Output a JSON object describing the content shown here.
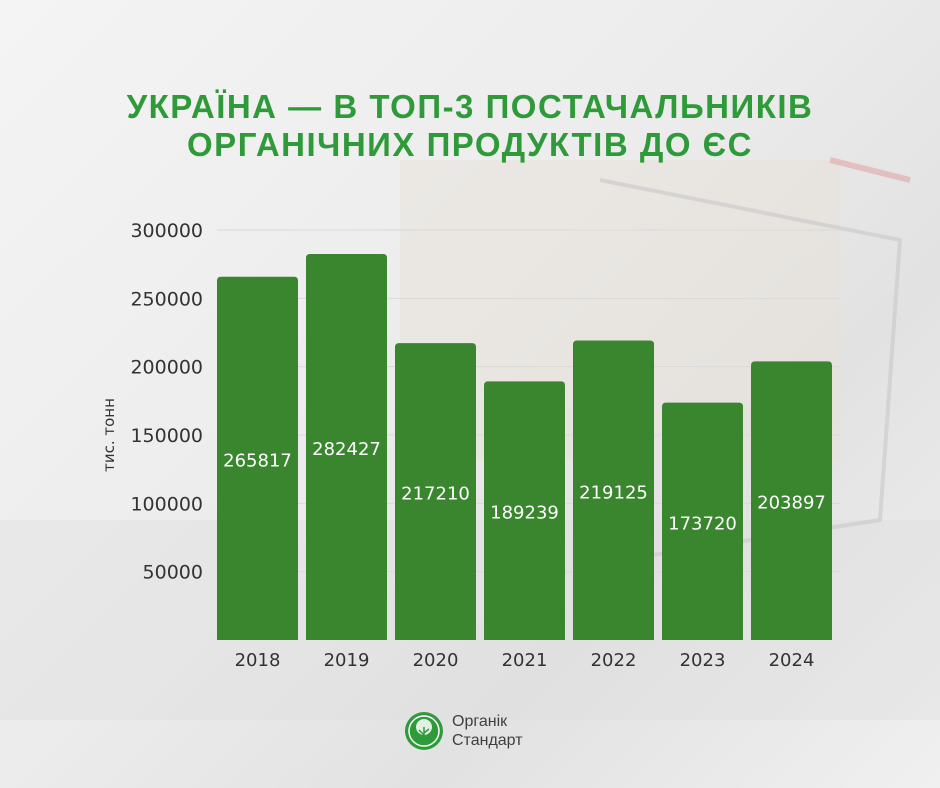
{
  "title_lines": [
    "УКРАЇНА — В ТОП-3 ПОСТАЧАЛЬНИКІВ",
    "ОРГАНІЧНИХ ПРОДУКТІВ ДО ЄС"
  ],
  "chart_data": {
    "type": "bar",
    "title": "УКРАЇНА — В ТОП-3 ПОСТАЧАЛЬНИКІВ ОРГАНІЧНИХ ПРОДУКТІВ ДО ЄС",
    "categories": [
      "2018",
      "2019",
      "2020",
      "2021",
      "2022",
      "2023",
      "2024"
    ],
    "values": [
      265817,
      282427,
      217210,
      189239,
      219125,
      173720,
      203897
    ],
    "xlabel": "",
    "ylabel": "тис. тонн",
    "ylim": [
      0,
      300000
    ],
    "yticks": [
      50000,
      100000,
      150000,
      200000,
      250000,
      300000
    ],
    "grid": true,
    "bar_color": "#3a862f",
    "label_color": "#ffffff"
  },
  "logo": {
    "line1": "Органік",
    "line2": "Стандарт",
    "color": "#2f9a3a"
  }
}
